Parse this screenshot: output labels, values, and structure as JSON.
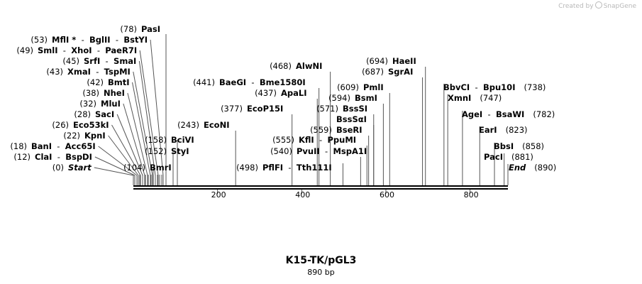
{
  "credit": {
    "prefix": "Created by",
    "brand": "SnapGene"
  },
  "sequence": {
    "name": "K15-TK/pGL3",
    "length_label": "890 bp",
    "length": 890
  },
  "ticks": [
    {
      "value": 200,
      "label": "200"
    },
    {
      "value": 400,
      "label": "400"
    },
    {
      "value": 600,
      "label": "600"
    },
    {
      "value": 800,
      "label": "800"
    }
  ],
  "features": [
    {
      "pos": 78,
      "pos_label": "(78)",
      "names": [
        "PasI"
      ]
    },
    {
      "pos": 53,
      "pos_label": "(53)",
      "names": [
        "MflI *",
        "BglII",
        "BstYI"
      ]
    },
    {
      "pos": 49,
      "pos_label": "(49)",
      "names": [
        "SmlI",
        "XhoI",
        "PaeR7I"
      ]
    },
    {
      "pos": 45,
      "pos_label": "(45)",
      "names": [
        "SrfI",
        "SmaI"
      ]
    },
    {
      "pos": 43,
      "pos_label": "(43)",
      "names": [
        "XmaI",
        "TspMI"
      ]
    },
    {
      "pos": 42,
      "pos_label": "(42)",
      "names": [
        "BmtI"
      ]
    },
    {
      "pos": 38,
      "pos_label": "(38)",
      "names": [
        "NheI"
      ]
    },
    {
      "pos": 32,
      "pos_label": "(32)",
      "names": [
        "MluI"
      ]
    },
    {
      "pos": 28,
      "pos_label": "(28)",
      "names": [
        "SacI"
      ]
    },
    {
      "pos": 26,
      "pos_label": "(26)",
      "names": [
        "Eco53kI"
      ]
    },
    {
      "pos": 22,
      "pos_label": "(22)",
      "names": [
        "KpnI"
      ]
    },
    {
      "pos": 18,
      "pos_label": "(18)",
      "names": [
        "BanI",
        "Acc65I"
      ]
    },
    {
      "pos": 12,
      "pos_label": "(12)",
      "names": [
        "ClaI",
        "BspDI"
      ]
    },
    {
      "pos": 0,
      "pos_label": "(0)",
      "names": [
        "Start"
      ],
      "italic": true
    },
    {
      "pos": 104,
      "pos_label": "(104)",
      "names": [
        "BmrI"
      ]
    },
    {
      "pos": 152,
      "pos_label": "(152)",
      "names": [
        "StyI"
      ]
    },
    {
      "pos": 158,
      "pos_label": "(158)",
      "names": [
        "BciVI"
      ]
    },
    {
      "pos": 243,
      "pos_label": "(243)",
      "names": [
        "EcoNI"
      ]
    },
    {
      "pos": 441,
      "pos_label": "(441)",
      "names": [
        "BaeGI",
        "Bme1580I"
      ]
    },
    {
      "pos": 437,
      "pos_label": "(437)",
      "names": [
        "ApaLI"
      ]
    },
    {
      "pos": 377,
      "pos_label": "(377)",
      "names": [
        "EcoP15I"
      ]
    },
    {
      "pos": 468,
      "pos_label": "(468)",
      "names": [
        "AlwNI"
      ]
    },
    {
      "pos": 498,
      "pos_label": "(498)",
      "names": [
        "PflFI",
        "Tth111I"
      ]
    },
    {
      "pos": 540,
      "pos_label": "(540)",
      "names": [
        "PvuII",
        "MspA1I"
      ]
    },
    {
      "pos": 555,
      "pos_label": "(555)",
      "names": [
        "KflI",
        "PpuMI"
      ]
    },
    {
      "pos": 559,
      "pos_label": "(559)",
      "names": [
        "BseRI"
      ]
    },
    {
      "pos": 571,
      "pos_label": "(571)",
      "names": [
        "BssSI"
      ]
    },
    {
      "pos": 571,
      "pos_label": "",
      "names": [
        "BssSαI"
      ]
    },
    {
      "pos": 594,
      "pos_label": "(594)",
      "names": [
        "BsmI"
      ]
    },
    {
      "pos": 609,
      "pos_label": "(609)",
      "names": [
        "PmlI"
      ]
    },
    {
      "pos": 687,
      "pos_label": "(687)",
      "names": [
        "SgrAI"
      ]
    },
    {
      "pos": 694,
      "pos_label": "(694)",
      "names": [
        "HaeII"
      ]
    },
    {
      "pos": 738,
      "pos_label": "(738)",
      "names": [
        "BbvCI",
        "Bpu10I"
      ]
    },
    {
      "pos": 747,
      "pos_label": "(747)",
      "names": [
        "XmnI"
      ]
    },
    {
      "pos": 782,
      "pos_label": "(782)",
      "names": [
        "AgeI",
        "BsaWI"
      ]
    },
    {
      "pos": 823,
      "pos_label": "(823)",
      "names": [
        "EarI"
      ]
    },
    {
      "pos": 858,
      "pos_label": "(858)",
      "names": [
        "BbsI"
      ]
    },
    {
      "pos": 881,
      "pos_label": "(881)",
      "names": [
        "PacI"
      ]
    },
    {
      "pos": 890,
      "pos_label": "(890)",
      "names": [
        "End"
      ],
      "italic": true
    }
  ]
}
